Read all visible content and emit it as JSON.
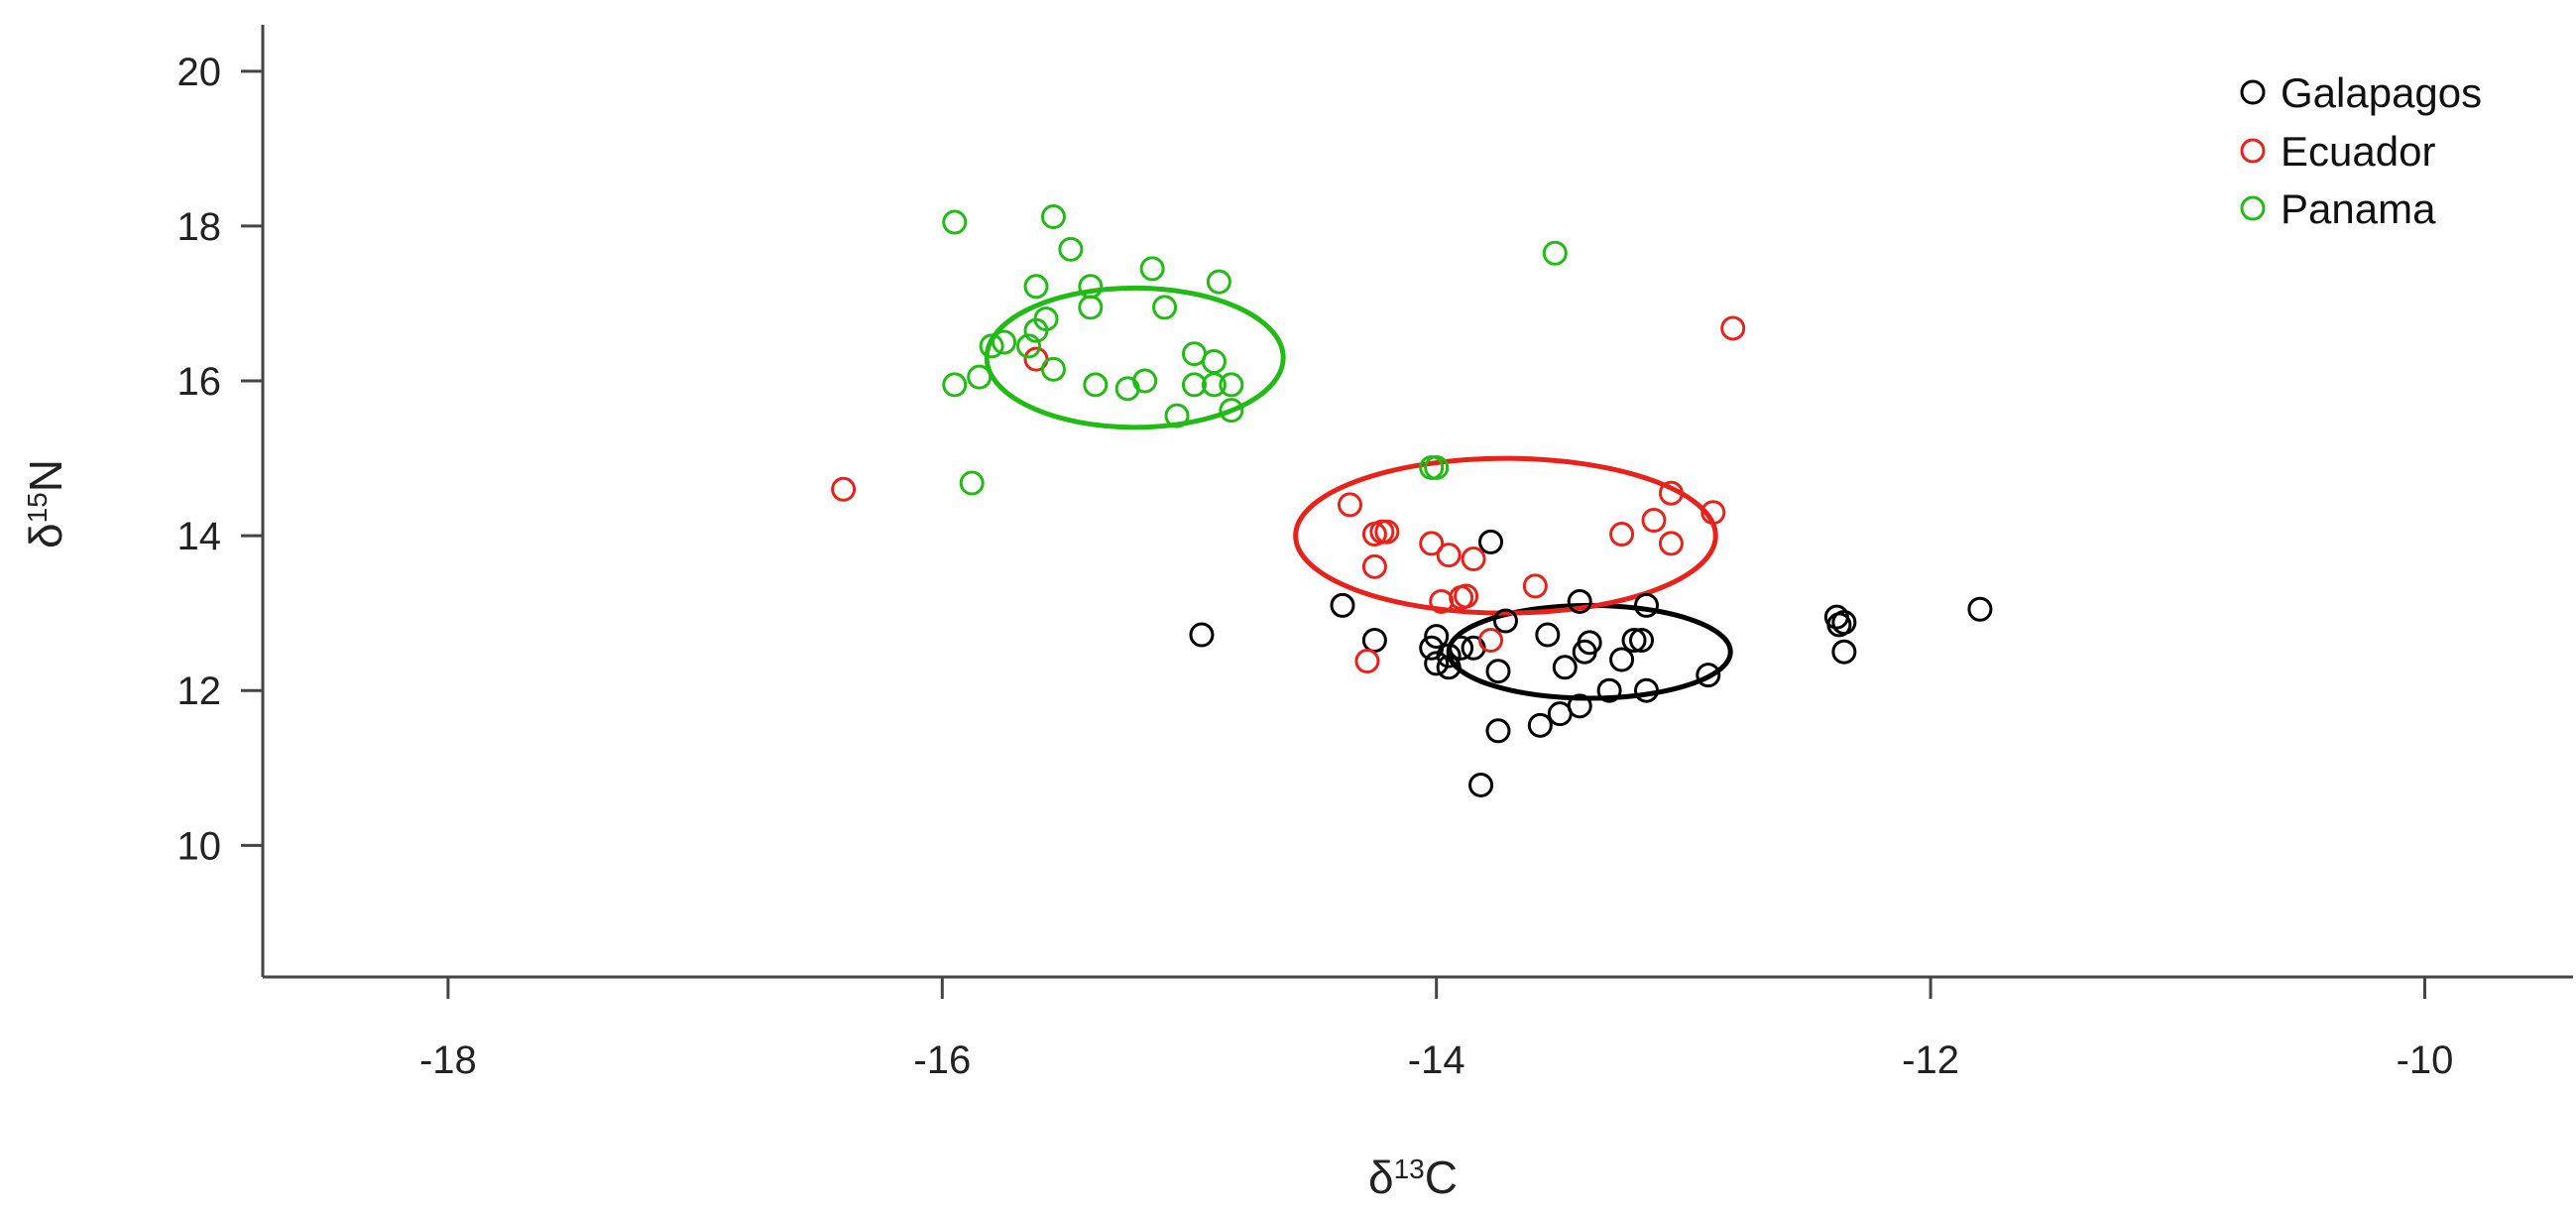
{
  "chart_data": {
    "type": "scatter",
    "xlabel": {
      "prefix": "δ",
      "sup": "13",
      "suffix": "C"
    },
    "ylabel": {
      "prefix": "δ",
      "sup": "15",
      "suffix": "N"
    },
    "xlim": [
      -18.75,
      -9.4
    ],
    "ylim": [
      8.3,
      20.6
    ],
    "x_ticks": [
      -18,
      -16,
      -14,
      -12,
      -10
    ],
    "y_ticks": [
      10,
      12,
      14,
      16,
      18,
      20
    ],
    "x_tick_labels": [
      "-18",
      "-16",
      "-14",
      "-12",
      "-10"
    ],
    "y_tick_labels": [
      "10",
      "12",
      "14",
      "16",
      "18",
      "20"
    ],
    "legend_position": "top-right",
    "grid": false,
    "series": [
      {
        "name": "Galapagos",
        "color": "#000000",
        "marker": "open-circle",
        "points": [
          [
            -13.78,
            13.92
          ],
          [
            -14.95,
            12.72
          ],
          [
            -14.38,
            13.1
          ],
          [
            -14.25,
            12.65
          ],
          [
            -14.0,
            12.7
          ],
          [
            -14.02,
            12.55
          ],
          [
            -13.95,
            12.45
          ],
          [
            -14.0,
            12.35
          ],
          [
            -13.95,
            12.3
          ],
          [
            -13.9,
            12.55
          ],
          [
            -13.85,
            12.55
          ],
          [
            -13.75,
            12.25
          ],
          [
            -13.72,
            12.9
          ],
          [
            -13.55,
            12.72
          ],
          [
            -13.48,
            12.3
          ],
          [
            -13.42,
            13.15
          ],
          [
            -13.38,
            12.62
          ],
          [
            -13.4,
            12.5
          ],
          [
            -13.25,
            12.4
          ],
          [
            -13.2,
            12.65
          ],
          [
            -13.17,
            12.65
          ],
          [
            -13.15,
            13.1
          ],
          [
            -13.3,
            12.0
          ],
          [
            -13.15,
            12.0
          ],
          [
            -12.9,
            12.2
          ],
          [
            -13.42,
            11.8
          ],
          [
            -13.5,
            11.7
          ],
          [
            -13.58,
            11.55
          ],
          [
            -13.75,
            11.48
          ],
          [
            -13.82,
            10.78
          ],
          [
            -12.38,
            12.95
          ],
          [
            -12.37,
            12.85
          ],
          [
            -12.35,
            12.88
          ],
          [
            -12.35,
            12.5
          ],
          [
            -11.8,
            13.05
          ]
        ],
        "ellipse": {
          "cx": -13.38,
          "cy": 12.5,
          "rx": 0.57,
          "ry": 0.6,
          "angle": 0
        }
      },
      {
        "name": "Ecuador",
        "color": "#e8221a",
        "marker": "open-circle",
        "points": [
          [
            -16.4,
            14.6
          ],
          [
            -15.62,
            16.28
          ],
          [
            -14.35,
            14.4
          ],
          [
            -14.28,
            12.38
          ],
          [
            -14.25,
            14.02
          ],
          [
            -14.22,
            14.05
          ],
          [
            -14.2,
            14.05
          ],
          [
            -14.25,
            13.6
          ],
          [
            -14.02,
            13.9
          ],
          [
            -13.98,
            13.15
          ],
          [
            -13.95,
            13.75
          ],
          [
            -13.9,
            13.2
          ],
          [
            -13.88,
            13.22
          ],
          [
            -13.85,
            13.7
          ],
          [
            -13.78,
            12.65
          ],
          [
            -13.6,
            13.35
          ],
          [
            -13.25,
            14.02
          ],
          [
            -13.12,
            14.2
          ],
          [
            -13.05,
            14.55
          ],
          [
            -13.05,
            13.9
          ],
          [
            -12.88,
            14.3
          ],
          [
            -12.8,
            16.68
          ]
        ],
        "ellipse": {
          "cx": -13.72,
          "cy": 14.0,
          "rx": 0.85,
          "ry": 1.0,
          "angle": 0
        }
      },
      {
        "name": "Panama",
        "color": "#22bb16",
        "marker": "open-circle",
        "points": [
          [
            -15.95,
            18.05
          ],
          [
            -15.55,
            18.12
          ],
          [
            -15.48,
            17.7
          ],
          [
            -15.4,
            17.22
          ],
          [
            -15.62,
            17.22
          ],
          [
            -15.15,
            17.45
          ],
          [
            -15.1,
            16.95
          ],
          [
            -15.4,
            16.95
          ],
          [
            -15.58,
            16.8
          ],
          [
            -15.62,
            16.65
          ],
          [
            -15.65,
            16.45
          ],
          [
            -15.75,
            16.5
          ],
          [
            -15.8,
            16.45
          ],
          [
            -15.55,
            16.15
          ],
          [
            -15.38,
            15.95
          ],
          [
            -15.25,
            15.9
          ],
          [
            -15.18,
            16.0
          ],
          [
            -15.05,
            15.55
          ],
          [
            -14.98,
            16.35
          ],
          [
            -14.98,
            15.95
          ],
          [
            -14.9,
            15.95
          ],
          [
            -14.9,
            16.25
          ],
          [
            -14.88,
            17.28
          ],
          [
            -14.83,
            15.95
          ],
          [
            -14.83,
            15.62
          ],
          [
            -15.95,
            15.95
          ],
          [
            -15.85,
            16.05
          ],
          [
            -15.88,
            14.68
          ],
          [
            -14.02,
            14.88
          ],
          [
            -14.0,
            14.88
          ],
          [
            -13.52,
            17.65
          ]
        ],
        "ellipse": {
          "cx": -15.22,
          "cy": 16.3,
          "rx": 0.6,
          "ry": 0.9,
          "angle": 0
        }
      }
    ]
  }
}
